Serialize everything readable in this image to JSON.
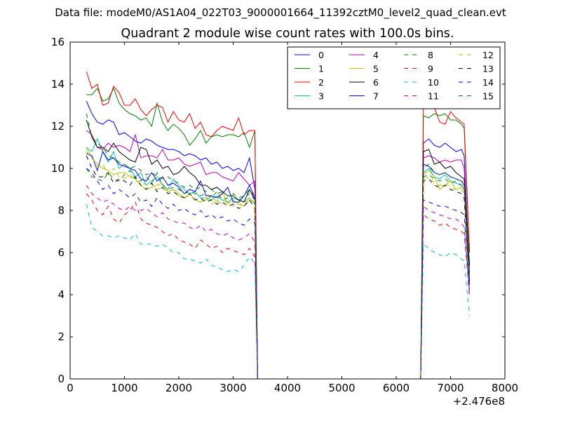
{
  "chart_data": {
    "type": "line",
    "suptitle": "Data file: modeM0/AS1A04_022T03_9000001664_11392cztM0_level2_quad_clean.evt",
    "title": "Quadrant 2 module wise count rates with 100.0s bins.",
    "xlabel": "",
    "ylabel": "",
    "xlim": [
      0,
      8000
    ],
    "ylim": [
      0,
      16
    ],
    "x_offset_label": "+2.476e8",
    "x_ticks": [
      0,
      1000,
      2000,
      3000,
      4000,
      5000,
      6000,
      7000,
      8000
    ],
    "y_ticks": [
      0,
      2,
      4,
      6,
      8,
      10,
      12,
      14,
      16
    ],
    "grid": false,
    "legend_position": "top-right",
    "legend_columns": 4,
    "series": [
      {
        "name": "0",
        "color": "#0000ff",
        "dash": "solid",
        "values": [
          13.2,
          12.6,
          12.2,
          12.1,
          12.3,
          12.2,
          11.6,
          11.7,
          11.5,
          11.3,
          11.2,
          11.4,
          11.3,
          11.1,
          11.0,
          10.9,
          10.9,
          10.8,
          10.6,
          10.7,
          10.6,
          10.4,
          10.5,
          10.2,
          10.3,
          10.0,
          10.1,
          9.9,
          10.0,
          9.8,
          10.5,
          9.0,
          0.0,
          0.0,
          11.2,
          11.4,
          11.1,
          11.0,
          11.2,
          11.0,
          10.8,
          10.9,
          10.6,
          5.0
        ]
      },
      {
        "name": "1",
        "color": "#008000",
        "dash": "solid",
        "values": [
          13.5,
          13.5,
          13.8,
          13.2,
          13.3,
          13.8,
          13.1,
          12.8,
          12.6,
          12.5,
          12.3,
          12.4,
          12.0,
          13.1,
          12.2,
          11.8,
          12.1,
          11.9,
          11.6,
          11.1,
          11.4,
          11.8,
          11.2,
          11.5,
          11.6,
          11.5,
          11.6,
          11.6,
          11.5,
          11.7,
          11.0,
          11.8,
          0.0,
          0.0,
          12.5,
          12.4,
          12.6,
          12.5,
          12.6,
          12.3,
          12.3,
          12.1,
          11.9,
          6.0
        ]
      },
      {
        "name": "2",
        "color": "#ff0000",
        "dash": "solid",
        "values": [
          14.6,
          13.8,
          14.0,
          13.0,
          13.1,
          13.9,
          13.6,
          13.0,
          13.0,
          13.3,
          12.8,
          12.5,
          12.8,
          13.0,
          12.9,
          12.2,
          12.7,
          12.3,
          12.2,
          12.6,
          11.9,
          12.2,
          11.6,
          11.5,
          11.8,
          12.0,
          11.9,
          11.8,
          12.4,
          11.6,
          11.8,
          11.8,
          0.0,
          0.0,
          13.1,
          13.4,
          12.9,
          12.2,
          12.1,
          12.7,
          12.4,
          12.2,
          12.1,
          6.1
        ]
      },
      {
        "name": "3",
        "color": "#00bfbf",
        "dash": "solid",
        "values": [
          11.0,
          10.8,
          11.4,
          10.8,
          10.3,
          10.8,
          10.0,
          10.2,
          10.0,
          9.6,
          9.8,
          9.2,
          9.4,
          9.6,
          9.2,
          9.0,
          9.5,
          9.2,
          9.0,
          8.8,
          8.9,
          8.6,
          8.6,
          8.5,
          8.7,
          8.5,
          8.4,
          8.6,
          8.5,
          8.4,
          8.6,
          8.3,
          0.0,
          0.0,
          9.8,
          10.0,
          9.6,
          9.5,
          9.7,
          9.4,
          9.3,
          9.2,
          9.0,
          4.5
        ]
      },
      {
        "name": "4",
        "color": "#bf00bf",
        "dash": "solid",
        "values": [
          11.8,
          11.6,
          11.0,
          10.9,
          11.2,
          11.0,
          11.1,
          11.0,
          10.8,
          11.6,
          10.5,
          10.6,
          10.6,
          10.5,
          10.9,
          10.4,
          10.4,
          10.5,
          10.2,
          10.1,
          10.2,
          10.3,
          9.7,
          9.8,
          9.8,
          9.6,
          9.5,
          9.4,
          9.8,
          9.5,
          9.2,
          9.4,
          0.0,
          0.0,
          10.5,
          10.6,
          10.5,
          10.3,
          10.4,
          10.3,
          10.4,
          10.4,
          10.0,
          5.2
        ]
      },
      {
        "name": "5",
        "color": "#bfbf00",
        "dash": "solid",
        "values": [
          11.0,
          10.5,
          10.2,
          10.0,
          9.9,
          9.7,
          9.8,
          9.8,
          9.6,
          9.5,
          9.2,
          9.0,
          9.1,
          9.2,
          9.3,
          8.9,
          9.0,
          8.8,
          8.6,
          8.8,
          8.5,
          8.4,
          8.5,
          8.7,
          8.4,
          8.9,
          8.3,
          8.5,
          8.3,
          8.2,
          8.5,
          8.4,
          0.0,
          0.0,
          9.7,
          9.9,
          9.6,
          9.0,
          9.2,
          9.4,
          9.0,
          9.1,
          9.0,
          4.8
        ]
      },
      {
        "name": "6",
        "color": "#000000",
        "dash": "solid",
        "values": [
          12.3,
          11.5,
          11.0,
          11.0,
          10.8,
          11.2,
          10.8,
          10.6,
          10.4,
          10.3,
          11.0,
          10.9,
          10.2,
          10.4,
          10.0,
          10.1,
          9.7,
          9.8,
          10.1,
          9.8,
          9.6,
          9.2,
          9.2,
          9.0,
          9.1,
          8.9,
          8.7,
          8.7,
          8.5,
          8.4,
          9.0,
          8.5,
          0.0,
          0.0,
          10.8,
          10.9,
          10.2,
          10.3,
          10.0,
          10.1,
          9.8,
          9.6,
          9.5,
          5.4
        ]
      },
      {
        "name": "7",
        "color": "#0000ff",
        "dash": "solid",
        "values": [
          10.7,
          10.6,
          9.9,
          10.8,
          10.4,
          10.5,
          10.2,
          10.1,
          10.0,
          9.9,
          9.5,
          9.4,
          9.8,
          9.4,
          9.6,
          9.2,
          9.3,
          9.1,
          8.8,
          9.0,
          8.9,
          9.4,
          8.7,
          8.7,
          8.6,
          8.8,
          9.1,
          8.4,
          8.4,
          8.7,
          9.2,
          8.6,
          0.0,
          0.0,
          10.2,
          10.1,
          9.8,
          9.7,
          9.8,
          9.6,
          9.5,
          9.4,
          9.2,
          4.6
        ]
      },
      {
        "name": "8",
        "color": "#008000",
        "dash": "dash",
        "values": [
          10.0,
          9.6,
          9.5,
          9.4,
          9.8,
          9.5,
          9.4,
          9.7,
          9.9,
          9.5,
          9.4,
          9.6,
          9.3,
          9.8,
          9.2,
          9.0,
          9.1,
          9.0,
          8.8,
          8.9,
          8.8,
          8.7,
          8.8,
          8.6,
          8.9,
          8.5,
          8.6,
          8.7,
          8.5,
          8.6,
          8.8,
          8.5,
          0.0,
          0.0,
          9.6,
          9.7,
          9.5,
          9.4,
          9.5,
          9.3,
          9.4,
          9.2,
          9.1,
          4.7
        ]
      },
      {
        "name": "9",
        "color": "#ff0000",
        "dash": "dash",
        "values": [
          8.8,
          8.5,
          8.0,
          7.8,
          8.2,
          7.6,
          7.4,
          7.8,
          8.0,
          8.4,
          7.6,
          7.4,
          7.3,
          7.2,
          7.0,
          6.8,
          6.9,
          6.6,
          6.5,
          6.4,
          6.2,
          6.6,
          6.4,
          6.2,
          6.3,
          6.0,
          6.2,
          6.1,
          6.0,
          5.9,
          6.2,
          5.8,
          0.0,
          0.0,
          7.8,
          7.6,
          7.5,
          7.3,
          7.4,
          7.2,
          7.1,
          7.0,
          6.9,
          4.0
        ]
      },
      {
        "name": "10",
        "color": "#00bfbf",
        "dash": "dash",
        "values": [
          8.3,
          7.2,
          7.0,
          6.8,
          6.8,
          6.7,
          6.8,
          6.7,
          6.6,
          6.9,
          6.4,
          6.4,
          6.4,
          6.3,
          6.4,
          6.2,
          6.0,
          6.0,
          5.7,
          5.7,
          5.6,
          5.5,
          5.7,
          5.4,
          5.3,
          5.2,
          5.1,
          5.2,
          5.1,
          5.4,
          5.8,
          5.5,
          0.0,
          0.0,
          6.4,
          6.2,
          6.0,
          5.9,
          5.8,
          6.0,
          5.9,
          5.7,
          5.6,
          3.0
        ]
      },
      {
        "name": "11",
        "color": "#bf00bf",
        "dash": "dash",
        "values": [
          9.2,
          8.8,
          8.6,
          8.4,
          8.5,
          8.3,
          8.1,
          8.0,
          8.2,
          8.0,
          8.0,
          8.1,
          7.9,
          7.7,
          7.9,
          7.6,
          7.5,
          7.4,
          7.4,
          7.2,
          7.1,
          7.3,
          7.0,
          7.1,
          6.9,
          6.8,
          6.9,
          6.7,
          6.6,
          6.7,
          6.9,
          6.5,
          0.0,
          0.0,
          8.2,
          8.0,
          7.9,
          7.8,
          7.7,
          7.6,
          7.6,
          7.4,
          7.2,
          3.8
        ]
      },
      {
        "name": "12",
        "color": "#bfbf00",
        "dash": "dash",
        "values": [
          10.8,
          10.5,
          10.1,
          10.2,
          9.7,
          10.0,
          9.6,
          9.5,
          9.7,
          9.4,
          9.4,
          9.2,
          9.3,
          9.0,
          9.1,
          8.9,
          9.0,
          8.7,
          8.6,
          8.7,
          8.5,
          8.4,
          8.6,
          8.3,
          8.5,
          8.3,
          8.4,
          8.2,
          8.4,
          8.2,
          8.6,
          8.3,
          0.0,
          0.0,
          9.5,
          9.6,
          9.3,
          9.2,
          9.3,
          9.1,
          9.0,
          9.0,
          8.8,
          4.4
        ]
      },
      {
        "name": "13",
        "color": "#000000",
        "dash": "dash",
        "values": [
          10.6,
          10.0,
          9.6,
          9.6,
          9.8,
          9.3,
          9.5,
          9.4,
          9.2,
          9.6,
          9.2,
          9.0,
          9.3,
          8.9,
          9.1,
          8.8,
          8.9,
          8.7,
          8.6,
          8.8,
          8.5,
          8.6,
          8.4,
          8.5,
          8.3,
          8.4,
          8.2,
          8.3,
          8.1,
          8.2,
          8.5,
          8.1,
          0.0,
          0.0,
          9.4,
          9.5,
          9.2,
          9.1,
          9.2,
          9.0,
          8.9,
          8.8,
          8.6,
          4.3
        ]
      },
      {
        "name": "14",
        "color": "#0000ff",
        "dash": "dash",
        "values": [
          10.0,
          9.8,
          9.4,
          9.0,
          9.2,
          8.8,
          9.0,
          8.8,
          8.6,
          8.8,
          8.4,
          8.5,
          8.2,
          8.6,
          8.3,
          8.1,
          8.3,
          8.0,
          8.1,
          7.9,
          7.8,
          8.0,
          7.7,
          7.8,
          7.6,
          7.7,
          7.5,
          7.6,
          7.4,
          7.3,
          7.6,
          7.4,
          0.0,
          0.0,
          8.5,
          8.4,
          8.3,
          8.2,
          8.2,
          8.1,
          8.0,
          7.9,
          7.8,
          4.1
        ]
      },
      {
        "name": "15",
        "color": "#008000",
        "dash": "dash",
        "values": [
          12.6,
          11.5,
          11.2,
          11.0,
          10.6,
          10.5,
          10.3,
          10.2,
          10.0,
          10.1,
          9.9,
          9.7,
          9.8,
          9.6,
          9.5,
          9.6,
          9.4,
          9.3,
          9.1,
          9.2,
          9.0,
          9.1,
          8.9,
          9.0,
          8.8,
          8.9,
          8.7,
          8.8,
          8.6,
          8.7,
          9.0,
          8.6,
          0.0,
          0.0,
          10.0,
          10.2,
          9.8,
          9.7,
          9.8,
          9.6,
          9.5,
          9.4,
          9.3,
          4.9
        ]
      }
    ],
    "x": [
      300,
      400,
      500,
      600,
      700,
      800,
      900,
      1000,
      1100,
      1200,
      1300,
      1400,
      1500,
      1600,
      1700,
      1800,
      1900,
      2000,
      2100,
      2200,
      2300,
      2400,
      2500,
      2600,
      2700,
      2800,
      2900,
      3000,
      3100,
      3200,
      3300,
      3400,
      3450,
      6450,
      6500,
      6600,
      6700,
      6800,
      6900,
      7000,
      7100,
      7200,
      7250,
      7350
    ]
  }
}
